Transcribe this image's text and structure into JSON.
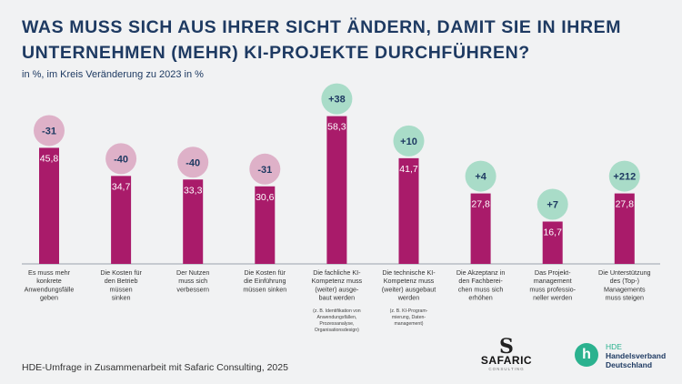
{
  "title_line1": "WAS MUSS SICH AUS IHRER SICHT ÄNDERN, DAMIT SIE IN IHREM",
  "title_line2": "UNTERNEHMEN (MEHR) KI-PROJEKTE DURCHFÜHREN?",
  "subtitle": "in %, im Kreis Veränderung zu 2023 in %",
  "source": "HDE-Umfrage in Zusammenarbeit mit Safaric Consulting, 2025",
  "logos": {
    "safaric_mark": "S",
    "safaric_name": "SAFARIC",
    "safaric_sub": "CONSULTING",
    "hde_abbr": "HDE",
    "hde_line1": "Handelsverband",
    "hde_line2": "Deutschland",
    "hde_letter": "h"
  },
  "colors": {
    "bar": "#a91b6a",
    "negative_bubble": "#deb1c8",
    "positive_bubble": "#a9dcc8",
    "text_dark": "#1e3a62",
    "background": "#f1f2f3"
  },
  "chart_data": {
    "type": "bar",
    "ylim": [
      0,
      65
    ],
    "categories": [
      [
        "Es muss mehr",
        "konkrete",
        "Anwendungsfälle",
        "geben"
      ],
      [
        "Die Kosten für",
        "den Betrieb",
        "müssen",
        "sinken"
      ],
      [
        "Der Nutzen",
        "muss sich",
        "verbessern"
      ],
      [
        "Die Kosten für",
        "die Einführung",
        "müssen sinken"
      ],
      [
        "Die fachliche KI-",
        "Kompetenz muss",
        "(weiter) ausge-",
        "baut werden"
      ],
      [
        "Die technische KI-",
        "Kompetenz muss",
        "(weiter) ausgebaut",
        "werden"
      ],
      [
        "Die Akzeptanz in",
        "den Fachberei-",
        "chen muss sich",
        "erhöhen"
      ],
      [
        "Das Projekt-",
        "management",
        "muss professio-",
        "neller werden"
      ],
      [
        "Die Unterstützung",
        "des (Top-)",
        "Managements",
        "muss steigen"
      ]
    ],
    "notes": [
      [],
      [],
      [],
      [],
      [
        "(z. B. Identifikation von",
        "Anwendungsfällen,",
        "Prozessanalyse,",
        "Organisationsdesign)"
      ],
      [
        "(z. B. KI-Program-",
        "mierung, Daten-",
        "management)"
      ],
      [],
      [],
      []
    ],
    "values": [
      45.8,
      34.7,
      33.3,
      30.6,
      58.3,
      41.7,
      27.8,
      16.7,
      27.8
    ],
    "value_labels": [
      "45,8",
      "34,7",
      "33,3",
      "30,6",
      "58,3",
      "41,7",
      "27,8",
      "16,7",
      "27,8"
    ],
    "changes": [
      -31,
      -40,
      -40,
      -31,
      38,
      10,
      4,
      7,
      212
    ],
    "change_labels": [
      "-31",
      "-40",
      "-40",
      "-31",
      "+38",
      "+10",
      "+4",
      "+7",
      "+212"
    ]
  }
}
